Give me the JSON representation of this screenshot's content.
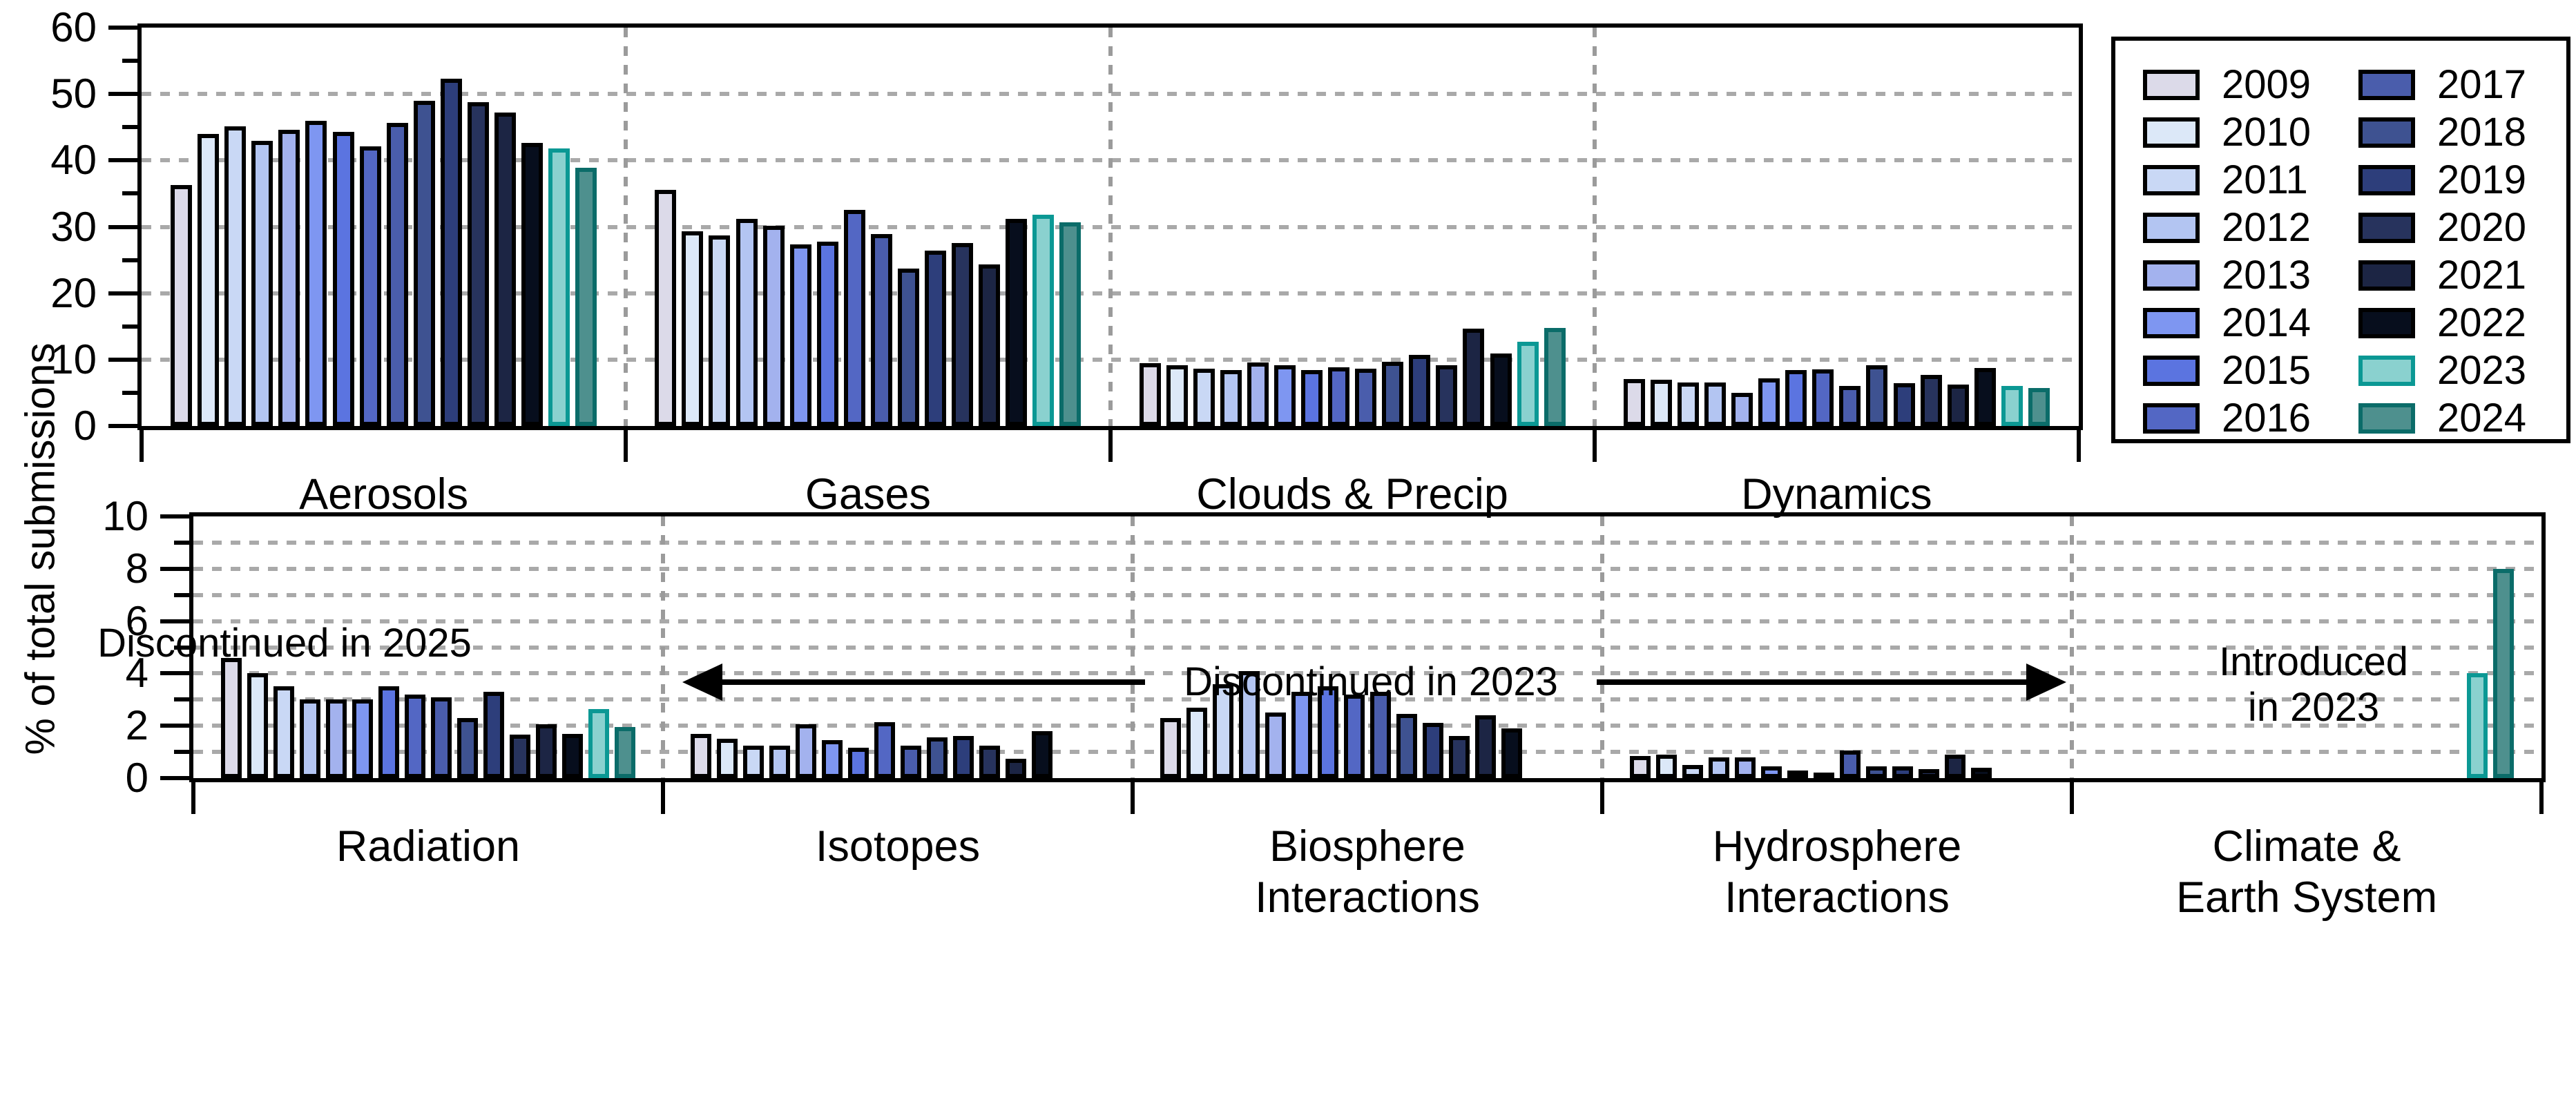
{
  "figure": {
    "y_axis_label": "% of total submissions"
  },
  "legend": {
    "years": [
      "2009",
      "2010",
      "2011",
      "2012",
      "2013",
      "2014",
      "2015",
      "2016",
      "2017",
      "2018",
      "2019",
      "2020",
      "2021",
      "2022",
      "2023",
      "2024"
    ]
  },
  "colors": {
    "year_fill": {
      "2009": "#dcdae9",
      "2010": "#dce8f8",
      "2011": "#c9d8f5",
      "2012": "#b3c5f2",
      "2013": "#a3b2ee",
      "2014": "#7e96f1",
      "2015": "#5b74e0",
      "2016": "#5367c4",
      "2017": "#4a5dac",
      "2018": "#3e5291",
      "2019": "#2d3e7b",
      "2020": "#27335d",
      "2021": "#1c2544",
      "2022": "#070e1d",
      "2023": "#8ad1cf",
      "2024": "#4e908e"
    },
    "year_edge": {
      "2009": "#000000",
      "2010": "#000000",
      "2011": "#000000",
      "2012": "#000000",
      "2013": "#000000",
      "2014": "#000000",
      "2015": "#000000",
      "2016": "#000000",
      "2017": "#000000",
      "2018": "#000000",
      "2019": "#000000",
      "2020": "#000000",
      "2021": "#000000",
      "2022": "#000000",
      "2023": "#0b9894",
      "2024": "#0b6c69"
    },
    "gridline": "#a9a9a9",
    "divider": "#9b9b9b",
    "axis": "#000000"
  },
  "annotations": {
    "discontinued_2025": "Discontinued in 2025",
    "discontinued_2023": "Discontinued in 2023",
    "introduced_2023_lines": [
      "Introduced",
      "in 2023"
    ]
  },
  "chart_data": [
    {
      "type": "bar",
      "panel": "top",
      "title": "",
      "ylabel": "% of total submissions",
      "ylim": [
        0,
        60
      ],
      "ytick_step": 10,
      "ytick_minor_step": 5,
      "grid": true,
      "legend_position": "outside top-right",
      "x": [
        "2009",
        "2010",
        "2011",
        "2012",
        "2013",
        "2014",
        "2015",
        "2016",
        "2017",
        "2018",
        "2019",
        "2020",
        "2021",
        "2022",
        "2023",
        "2024"
      ],
      "groups": [
        {
          "label": "Aerosols",
          "label_lines": [
            "Aerosols"
          ],
          "values": [
            36.3,
            44.0,
            45.1,
            42.9,
            44.6,
            46.0,
            44.3,
            42.1,
            45.7,
            49.0,
            52.3,
            48.8,
            47.2,
            42.6,
            41.8,
            38.9
          ]
        },
        {
          "label": "Gases",
          "label_lines": [
            "Gases"
          ],
          "values": [
            35.6,
            29.3,
            28.7,
            31.2,
            30.2,
            27.4,
            27.8,
            32.5,
            28.9,
            23.7,
            26.4,
            27.6,
            24.3,
            31.2,
            31.8,
            30.7
          ]
        },
        {
          "label": "Clouds & Precip",
          "label_lines": [
            "Clouds & Precip"
          ],
          "values": [
            9.5,
            9.1,
            8.6,
            8.4,
            9.6,
            9.1,
            8.4,
            8.8,
            8.6,
            9.7,
            10.7,
            9.2,
            14.7,
            10.9,
            12.7,
            14.8
          ]
        },
        {
          "label": "Dynamics",
          "label_lines": [
            "Dynamics"
          ],
          "values": [
            7.1,
            7.0,
            6.6,
            6.5,
            5.0,
            7.2,
            8.4,
            8.5,
            6.0,
            9.1,
            6.4,
            7.7,
            6.2,
            8.7,
            6.0,
            5.7
          ]
        }
      ]
    },
    {
      "type": "bar",
      "panel": "bottom",
      "title": "",
      "ylabel": "% of total submissions",
      "ylim": [
        0,
        10
      ],
      "ytick_step": 2,
      "ytick_minor_step": 1,
      "grid": true,
      "x": [
        "2009",
        "2010",
        "2011",
        "2012",
        "2013",
        "2014",
        "2015",
        "2016",
        "2017",
        "2018",
        "2019",
        "2020",
        "2021",
        "2022",
        "2023",
        "2024"
      ],
      "groups": [
        {
          "label": "Radiation",
          "label_lines": [
            "Radiation"
          ],
          "values": [
            4.6,
            4.0,
            3.5,
            3.0,
            3.0,
            3.0,
            3.5,
            3.2,
            3.1,
            2.3,
            3.3,
            1.65,
            2.05,
            1.7,
            2.65,
            1.95
          ]
        },
        {
          "label": "Isotopes",
          "label_lines": [
            "Isotopes"
          ],
          "values": [
            1.7,
            1.5,
            1.25,
            1.25,
            2.05,
            1.45,
            1.15,
            2.15,
            1.25,
            1.55,
            1.6,
            1.25,
            0.75,
            1.8,
            null,
            null
          ]
        },
        {
          "label": "Biosphere Interactions",
          "label_lines": [
            "Biosphere",
            "Interactions"
          ],
          "values": [
            2.3,
            2.7,
            3.6,
            4.1,
            2.5,
            3.3,
            3.5,
            3.2,
            3.3,
            2.45,
            2.1,
            1.6,
            2.4,
            1.9,
            null,
            null
          ]
        },
        {
          "label": "Hydrosphere Interactions",
          "label_lines": [
            "Hydrosphere",
            "Interactions"
          ],
          "values": [
            0.85,
            0.9,
            0.5,
            0.8,
            0.8,
            0.45,
            0.3,
            0.2,
            1.05,
            0.45,
            0.45,
            0.35,
            0.9,
            0.4,
            null,
            null
          ]
        },
        {
          "label": "Climate & Earth System",
          "label_lines": [
            "Climate &",
            "Earth System"
          ],
          "values": [
            null,
            null,
            null,
            null,
            null,
            null,
            null,
            null,
            null,
            null,
            null,
            null,
            null,
            null,
            4.0,
            8.0
          ]
        }
      ]
    }
  ]
}
